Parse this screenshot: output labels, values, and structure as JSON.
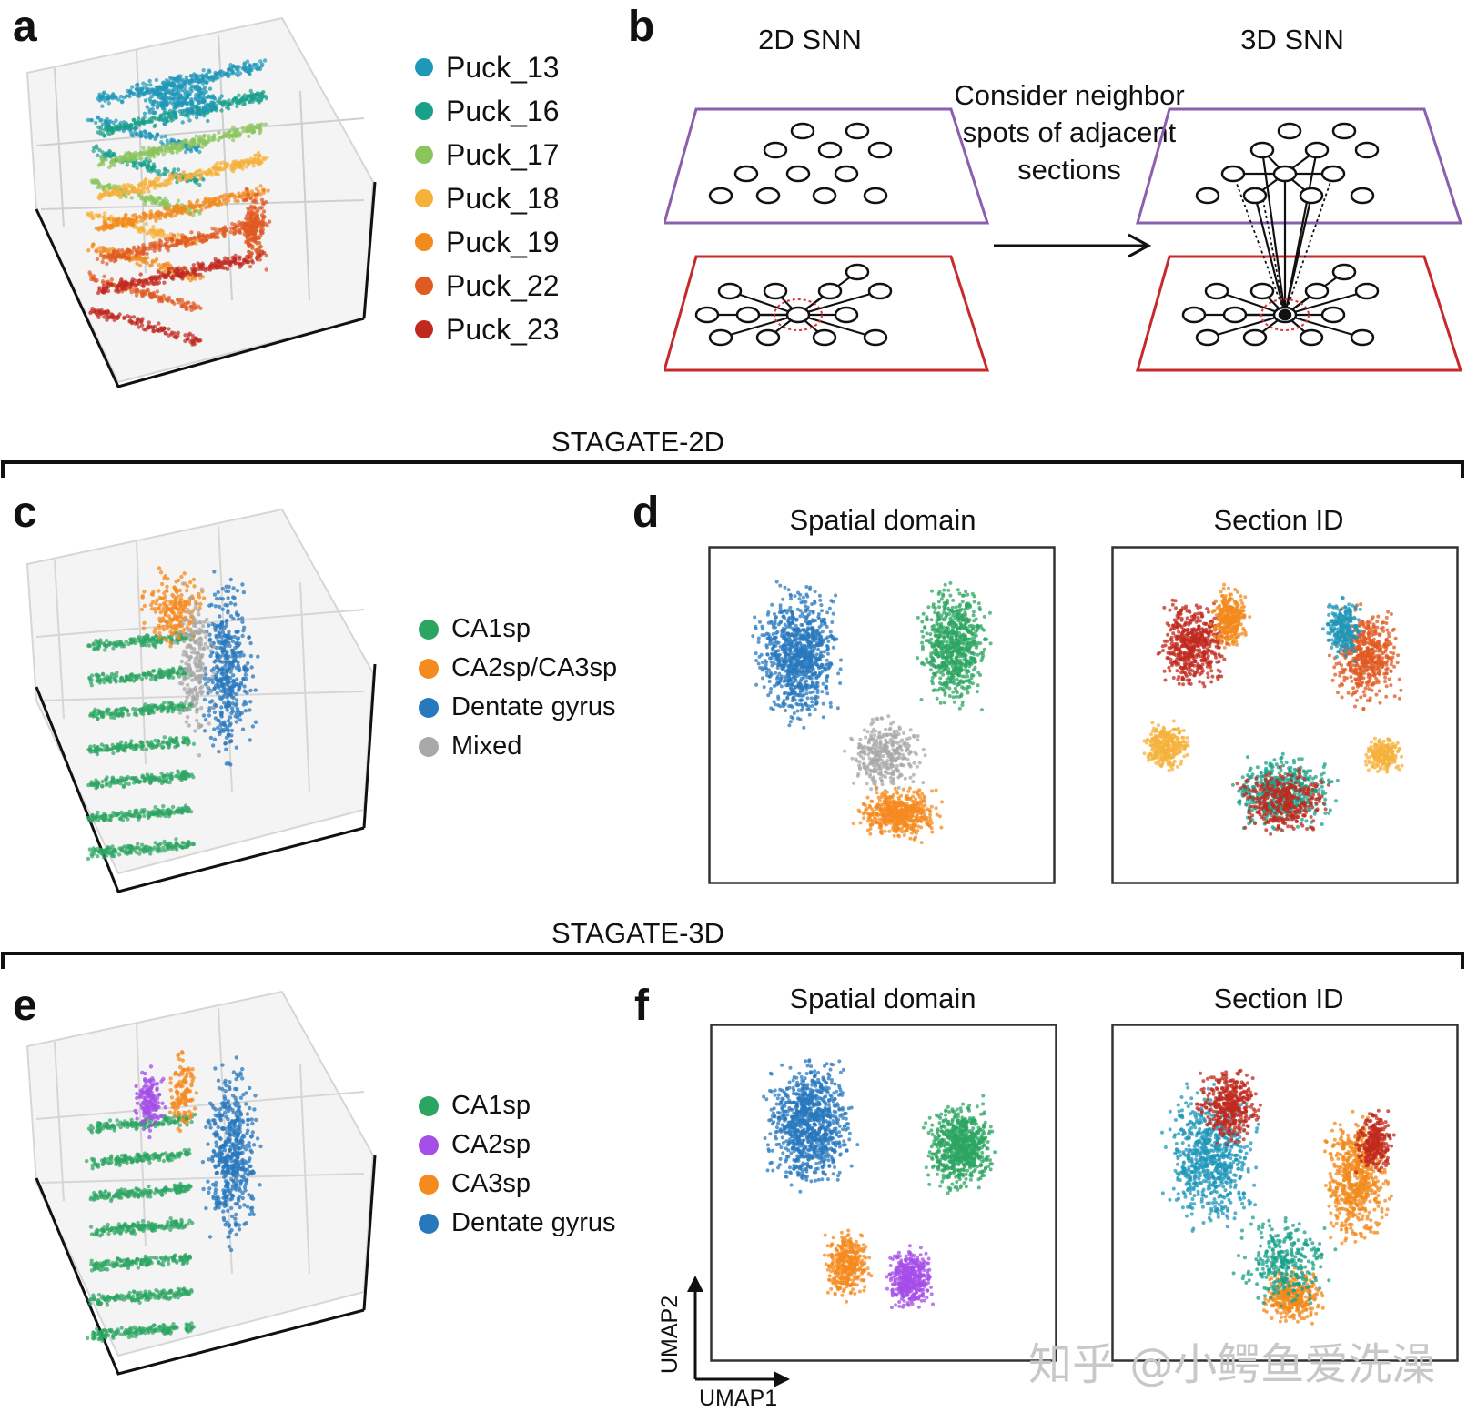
{
  "panels": {
    "a": {
      "label": "a",
      "legend": [
        {
          "text": "Puck_13",
          "color": "#1f97b8"
        },
        {
          "text": "Puck_16",
          "color": "#18a08a"
        },
        {
          "text": "Puck_17",
          "color": "#8cc55e"
        },
        {
          "text": "Puck_18",
          "color": "#f6b13b"
        },
        {
          "text": "Puck_19",
          "color": "#f28a1c"
        },
        {
          "text": "Puck_22",
          "color": "#e05a22"
        },
        {
          "text": "Puck_23",
          "color": "#c0291f"
        }
      ]
    },
    "b": {
      "label": "b",
      "title_left": "2D SNN",
      "title_right": "3D SNN",
      "middle_lines": [
        "Consider neighbor",
        "spots of adjacent",
        "sections"
      ]
    },
    "c": {
      "label": "c",
      "legend": [
        {
          "text": "CA1sp",
          "color": "#2ca562"
        },
        {
          "text": "CA2sp/CA3sp",
          "color": "#f58a1f"
        },
        {
          "text": "Dentate gyrus",
          "color": "#2878bd"
        },
        {
          "text": "Mixed",
          "color": "#a8a8a8"
        }
      ]
    },
    "d": {
      "label": "d",
      "title_left": "Spatial domain",
      "title_right": "Section ID"
    },
    "e": {
      "label": "e",
      "legend": [
        {
          "text": "CA1sp",
          "color": "#2ca562"
        },
        {
          "text": "CA2sp",
          "color": "#a64ee8"
        },
        {
          "text": "CA3sp",
          "color": "#f58a1f"
        },
        {
          "text": "Dentate gyrus",
          "color": "#2878bd"
        }
      ]
    },
    "f": {
      "label": "f",
      "title_left": "Spatial domain",
      "title_right": "Section ID",
      "xaxis": "UMAP1",
      "yaxis": "UMAP2"
    }
  },
  "sections": {
    "stagate_2d": "STAGATE-2D",
    "stagate_3d": "STAGATE-3D"
  },
  "watermark": "知乎 @小鳄鱼爱洗澡"
}
